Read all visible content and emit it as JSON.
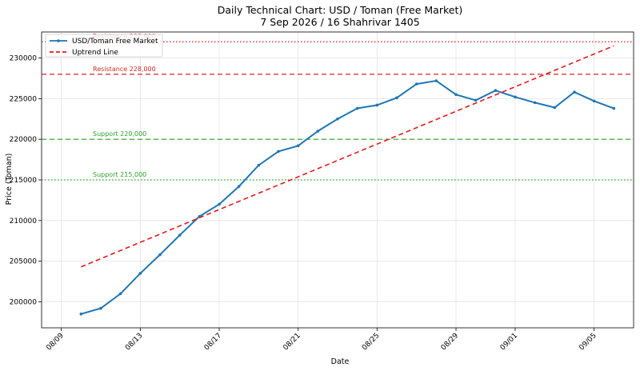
{
  "chart_data": {
    "type": "line",
    "title": "Daily Technical Chart: USD / Toman (Free Market)",
    "subtitle": "7 Sep 2026 / 16 Shahrivar 1405",
    "xlabel": "Date",
    "ylabel": "Price (Toman)",
    "x_tick_labels": [
      "08/09",
      "08/13",
      "08/17",
      "08/21",
      "08/25",
      "08/29",
      "09/01",
      "09/05"
    ],
    "x_tick_dates": [
      "2026-08-09",
      "2026-08-13",
      "2026-08-17",
      "2026-08-21",
      "2026-08-25",
      "2026-08-29",
      "2026-09-01",
      "2026-09-05"
    ],
    "y_ticks": [
      200000,
      205000,
      210000,
      215000,
      220000,
      225000,
      230000
    ],
    "x_range": [
      "2026-08-08",
      "2026-09-07"
    ],
    "ylim": [
      196800,
      233200
    ],
    "grid": true,
    "legend_position": "top-left",
    "series": [
      {
        "name": "USD/Toman Free Market",
        "color": "#1f77b4",
        "style": "solid-with-markers",
        "x": [
          "2026-08-10",
          "2026-08-11",
          "2026-08-12",
          "2026-08-13",
          "2026-08-14",
          "2026-08-15",
          "2026-08-16",
          "2026-08-17",
          "2026-08-18",
          "2026-08-19",
          "2026-08-20",
          "2026-08-21",
          "2026-08-22",
          "2026-08-23",
          "2026-08-24",
          "2026-08-25",
          "2026-08-26",
          "2026-08-27",
          "2026-08-28",
          "2026-08-29",
          "2026-08-30",
          "2026-08-31",
          "2026-09-01",
          "2026-09-02",
          "2026-09-03",
          "2026-09-04",
          "2026-09-05",
          "2026-09-06"
        ],
        "y": [
          198500,
          199200,
          201000,
          203500,
          205800,
          208200,
          210500,
          212000,
          214200,
          216800,
          218500,
          219200,
          221000,
          222500,
          223800,
          224200,
          225100,
          226800,
          227200,
          225500,
          224800,
          226000,
          225200,
          224500,
          223900,
          225800,
          224700,
          223800
        ]
      },
      {
        "name": "Uptrend Line",
        "color": "#e31a1c",
        "style": "dashed",
        "x": [
          "2026-08-10",
          "2026-09-06"
        ],
        "y": [
          204300,
          231500
        ]
      }
    ],
    "reference_lines": [
      {
        "label": "Resistance 232,000",
        "value": 232000,
        "color": "#cc0000",
        "style": "dotted"
      },
      {
        "label": "Resistance 228,000",
        "value": 228000,
        "color": "#d62728",
        "style": "dashed"
      },
      {
        "label": "Support 220,000",
        "value": 220000,
        "color": "#2ca02c",
        "style": "dashed"
      },
      {
        "label": "Support 215,000",
        "value": 215000,
        "color": "#2ca02c",
        "style": "dotted"
      }
    ]
  }
}
